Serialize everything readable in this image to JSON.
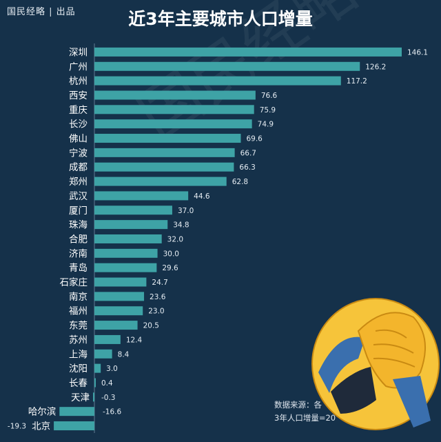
{
  "brand": "国民经略 | 出品",
  "watermark": "国民经略",
  "source": {
    "line1": "数据来源：各",
    "line2": "3年人口增量=20"
  },
  "colors": {
    "background": "#15314a",
    "bar": "#3ea3a6"
  },
  "emoji": "facepalm-emoji",
  "chart_data": {
    "type": "bar",
    "orientation": "horizontal",
    "title": "近3年主要城市人口增量",
    "categories": [
      "深圳",
      "广州",
      "杭州",
      "西安",
      "重庆",
      "长沙",
      "佛山",
      "宁波",
      "成都",
      "郑州",
      "武汉",
      "厦门",
      "珠海",
      "合肥",
      "济南",
      "青岛",
      "石家庄",
      "南京",
      "福州",
      "东莞",
      "苏州",
      "上海",
      "沈阳",
      "长春",
      "天津",
      "哈尔滨",
      "北京"
    ],
    "values": [
      146.1,
      126.2,
      117.2,
      76.6,
      75.9,
      74.9,
      69.6,
      66.7,
      66.3,
      62.8,
      44.6,
      37.0,
      34.8,
      32.0,
      30.0,
      29.6,
      24.7,
      23.6,
      23.0,
      20.5,
      12.4,
      8.4,
      3.0,
      0.4,
      -0.3,
      -16.6,
      -19.3
    ],
    "value_labels": [
      "146.1",
      "126.2",
      "117.2",
      "76.6",
      "75.9",
      "74.9",
      "69.6",
      "66.7",
      "66.3",
      "62.8",
      "44.6",
      "37.0",
      "34.8",
      "32.0",
      "30.0",
      "29.6",
      "24.7",
      "23.6",
      "23.0",
      "20.5",
      "12.4",
      "8.4",
      "3.0",
      "0.4",
      "-0.3",
      "-16.6",
      "-19.3"
    ],
    "xlim": [
      -19.3,
      146.1
    ],
    "grid": false,
    "legend": "none"
  }
}
